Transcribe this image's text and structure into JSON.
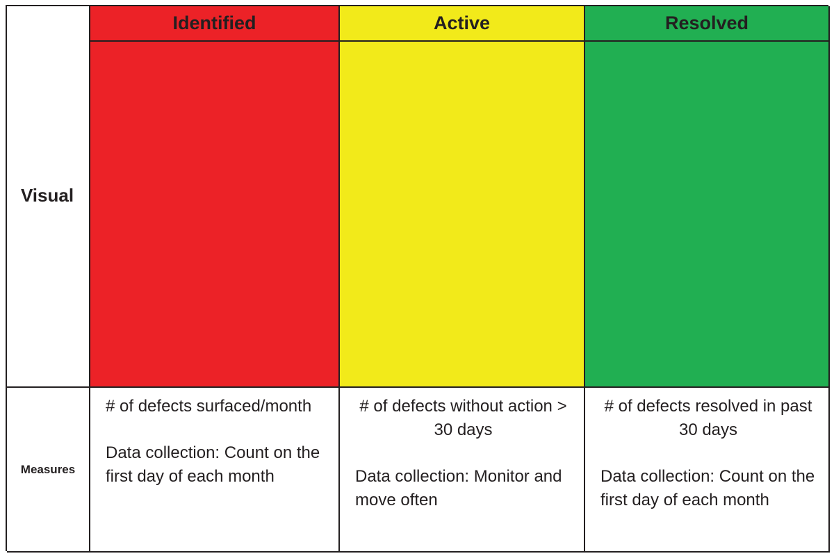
{
  "rows": {
    "visual_label": "Visual",
    "measures_label": "Measures"
  },
  "columns": [
    {
      "header": "Identified",
      "color": "#ec2227",
      "metric": "# of defects surfaced/month",
      "collection": "Data collection: Count on the first day of each month"
    },
    {
      "header": "Active",
      "color": "#f2ea1a",
      "metric": "# of defects without action > 30 days",
      "collection": "Data collection: Monitor and move often"
    },
    {
      "header": "Resolved",
      "color": "#21af52",
      "metric": "# of defects resolved in past 30 days",
      "collection": "Data collection: Count on the first day of each month"
    }
  ]
}
